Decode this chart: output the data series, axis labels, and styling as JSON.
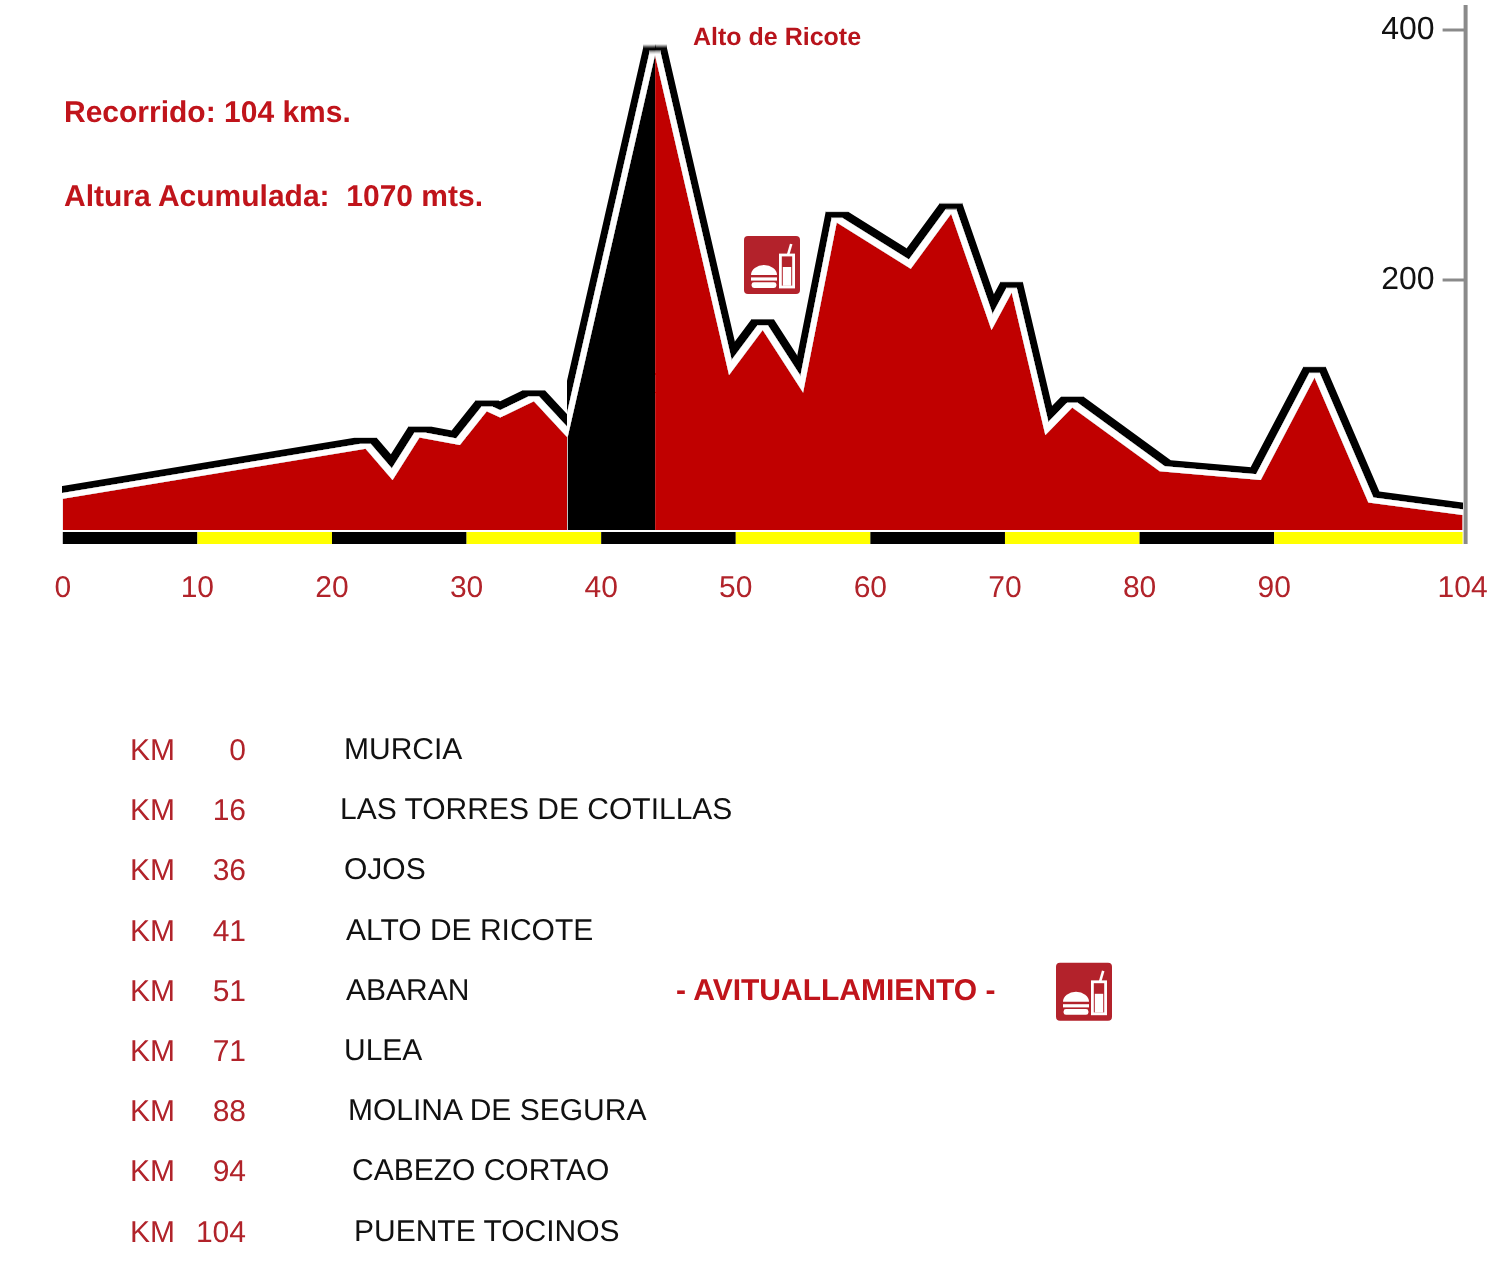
{
  "chart_data": {
    "type": "area",
    "annotations": [
      "Recorrido: 104 kms.",
      "Altura Acumulada:  1070 mts.",
      {
        "text": "Alto de Ricote",
        "x": 44,
        "y": 380
      },
      "KM 0",
      "MURCIA",
      "KM 16",
      "LAS TORRES DE COTILLAS",
      "KM 36",
      "OJOS",
      "KM 41",
      "ALTO DE RICOTE",
      "KM 51",
      "ABARAN",
      "- AVITUALLAMIENTO -",
      "KM 71",
      "ULEA",
      "KM 88",
      "MOLINA DE SEGURA",
      "KM 94",
      "CABEZO CORTAO",
      "KM 104",
      "PUENTE TOCINOS"
    ],
    "xlim": [
      0,
      104
    ],
    "xticks": [
      0,
      10,
      20,
      30,
      40,
      50,
      60,
      70,
      80,
      90,
      104
    ],
    "ylim": [
      0,
      420
    ],
    "yticks": [
      200,
      400
    ],
    "series": [
      {
        "color": "#c00000",
        "x": [
          0,
          22.5,
          24.5,
          26.5,
          29.5,
          31.5,
          32.5,
          35,
          37.5
        ],
        "values": [
          25,
          65,
          40,
          74,
          68,
          95,
          90,
          103,
          74
        ]
      },
      {
        "color": "#000000",
        "x": [
          37.5,
          44
        ],
        "values": [
          74,
          380
        ]
      },
      {
        "color": "#c00000",
        "x": [
          44,
          49.5,
          52,
          55,
          57.5,
          63,
          66,
          69,
          70.5,
          73,
          75,
          81.5,
          89,
          93,
          97,
          104
        ],
        "values": [
          380,
          124,
          160,
          110,
          246,
          209,
          253,
          160,
          190,
          76,
          98,
          47,
          40,
          122,
          22,
          12
        ]
      }
    ]
  }
}
